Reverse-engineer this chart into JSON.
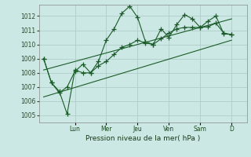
{
  "xlabel": "Pression niveau de la mer( hPa )",
  "bg_color": "#cce8e4",
  "grid_color": "#aac8c4",
  "line_color": "#1a5c28",
  "marker": "+",
  "ylim": [
    1004.5,
    1012.8
  ],
  "xlim": [
    -0.3,
    13.0
  ],
  "day_ticks": [
    "Lun",
    "Mer",
    "Jeu",
    "Ven",
    "Sam",
    "D"
  ],
  "day_tick_positions": [
    2,
    4,
    6,
    8,
    10,
    12
  ],
  "series1_x": [
    0,
    0.5,
    1,
    1.5,
    2,
    2.5,
    3,
    3.5,
    4,
    4.5,
    5,
    5.5,
    6,
    6.5,
    7,
    7.5,
    8,
    8.5,
    9,
    9.5,
    10,
    10.5,
    11,
    11.5,
    12
  ],
  "series1_y": [
    1009.0,
    1007.3,
    1006.6,
    1007.0,
    1008.1,
    1008.6,
    1008.0,
    1008.8,
    1010.3,
    1011.1,
    1012.2,
    1012.7,
    1011.9,
    1010.2,
    1010.0,
    1011.1,
    1010.5,
    1011.4,
    1012.1,
    1011.8,
    1011.2,
    1011.65,
    1012.0,
    1010.75,
    1010.7
  ],
  "series2_x": [
    0,
    0.5,
    1,
    1.5,
    2,
    2.5,
    3,
    3.5,
    4,
    4.5,
    5,
    5.5,
    6,
    6.5,
    7,
    7.5,
    8,
    8.5,
    9,
    9.5,
    10,
    10.5,
    11,
    11.5,
    12
  ],
  "series2_y": [
    1009.0,
    1007.3,
    1006.7,
    1005.1,
    1008.2,
    1008.0,
    1008.0,
    1008.5,
    1008.8,
    1009.3,
    1009.8,
    1010.0,
    1010.3,
    1010.1,
    1010.0,
    1010.4,
    1010.8,
    1011.1,
    1011.2,
    1011.2,
    1011.2,
    1011.25,
    1011.5,
    1010.8,
    1010.7
  ],
  "trend1_x": [
    0,
    12
  ],
  "trend1_y": [
    1008.2,
    1011.8
  ],
  "trend2_x": [
    0,
    12
  ],
  "trend2_y": [
    1006.3,
    1010.3
  ],
  "yticks": [
    1005,
    1006,
    1007,
    1008,
    1009,
    1010,
    1011,
    1012
  ]
}
